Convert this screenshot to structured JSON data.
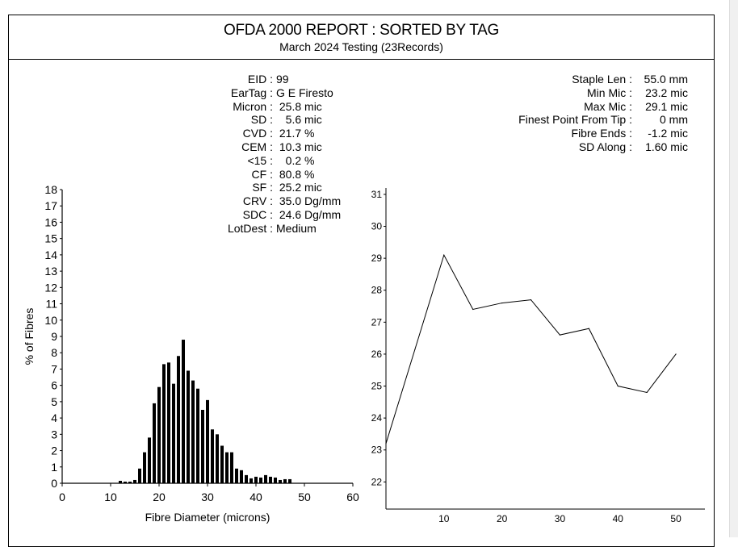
{
  "header": {
    "title": "OFDA 2000 REPORT : SORTED BY TAG",
    "subtitle": "March 2024 Testing (23Records)"
  },
  "left_stats": [
    {
      "label": "EID :",
      "value": "99"
    },
    {
      "label": "EarTag :",
      "value": "G E Firesto"
    },
    {
      "label": "Micron :",
      "value": " 25.8 mic"
    },
    {
      "label": "SD :",
      "value": "   5.6 mic"
    },
    {
      "label": "CVD :",
      "value": " 21.7 %"
    },
    {
      "label": "CEM :",
      "value": " 10.3 mic"
    },
    {
      "label": "<15 :",
      "value": "   0.2 %"
    },
    {
      "label": "CF :",
      "value": " 80.8 %"
    },
    {
      "label": "SF :",
      "value": " 25.2 mic"
    },
    {
      "label": "CRV :",
      "value": " 35.0 Dg/mm"
    },
    {
      "label": "SDC :",
      "value": " 24.6 Dg/mm"
    },
    {
      "label": "LotDest :",
      "value": "Medium"
    }
  ],
  "right_stats": [
    {
      "label": "Staple Len :",
      "value": "55.0 mm"
    },
    {
      "label": "Min Mic :",
      "value": "23.2 mic"
    },
    {
      "label": "Max Mic :",
      "value": "29.1 mic"
    },
    {
      "label": "Finest Point From Tip :",
      "value": "0 mm"
    },
    {
      "label": "Fibre Ends :",
      "value": "-1.2 mic"
    },
    {
      "label": "SD Along :",
      "value": "1.60 mic"
    }
  ],
  "chart_data": [
    {
      "type": "bar",
      "title": "",
      "xlabel": "Fibre Diameter (microns)",
      "ylabel": "% of Fibres",
      "xlim": [
        0,
        60
      ],
      "ylim": [
        0,
        18
      ],
      "xticks": [
        "0",
        "10",
        "20",
        "30",
        "40",
        "50",
        "60"
      ],
      "yticks": [
        "0",
        "1",
        "2",
        "3",
        "4",
        "5",
        "6",
        "7",
        "8",
        "9",
        "10",
        "11",
        "12",
        "13",
        "14",
        "15",
        "16",
        "17",
        "18"
      ],
      "x": [
        12,
        13,
        14,
        15,
        16,
        17,
        18,
        19,
        20,
        21,
        22,
        23,
        24,
        25,
        26,
        27,
        28,
        29,
        30,
        31,
        32,
        33,
        34,
        35,
        36,
        37,
        38,
        39,
        40,
        41,
        42,
        43,
        44,
        45,
        46,
        47
      ],
      "values": [
        0.15,
        0.1,
        0.1,
        0.2,
        0.9,
        1.9,
        2.8,
        4.9,
        5.9,
        7.3,
        7.4,
        6.1,
        7.8,
        8.8,
        6.9,
        6.3,
        5.8,
        4.5,
        5.1,
        3.3,
        3.0,
        2.3,
        1.9,
        1.9,
        0.9,
        0.8,
        0.5,
        0.3,
        0.4,
        0.35,
        0.5,
        0.4,
        0.35,
        0.2,
        0.25,
        0.25
      ]
    },
    {
      "type": "line",
      "title": "",
      "xlabel": "",
      "ylabel": "",
      "xlim": [
        0,
        55
      ],
      "ylim": [
        21.15,
        31.2
      ],
      "xticks": [
        "10",
        "20",
        "30",
        "40",
        "50"
      ],
      "yticks": [
        "22",
        "23",
        "24",
        "25",
        "26",
        "27",
        "28",
        "29",
        "30",
        "31"
      ],
      "x": [
        0,
        5,
        10,
        15,
        20,
        25,
        30,
        35,
        40,
        45,
        50
      ],
      "values": [
        23.2,
        26.15,
        29.1,
        27.4,
        27.6,
        27.7,
        26.6,
        26.8,
        25.0,
        24.8,
        26.0
      ]
    }
  ]
}
